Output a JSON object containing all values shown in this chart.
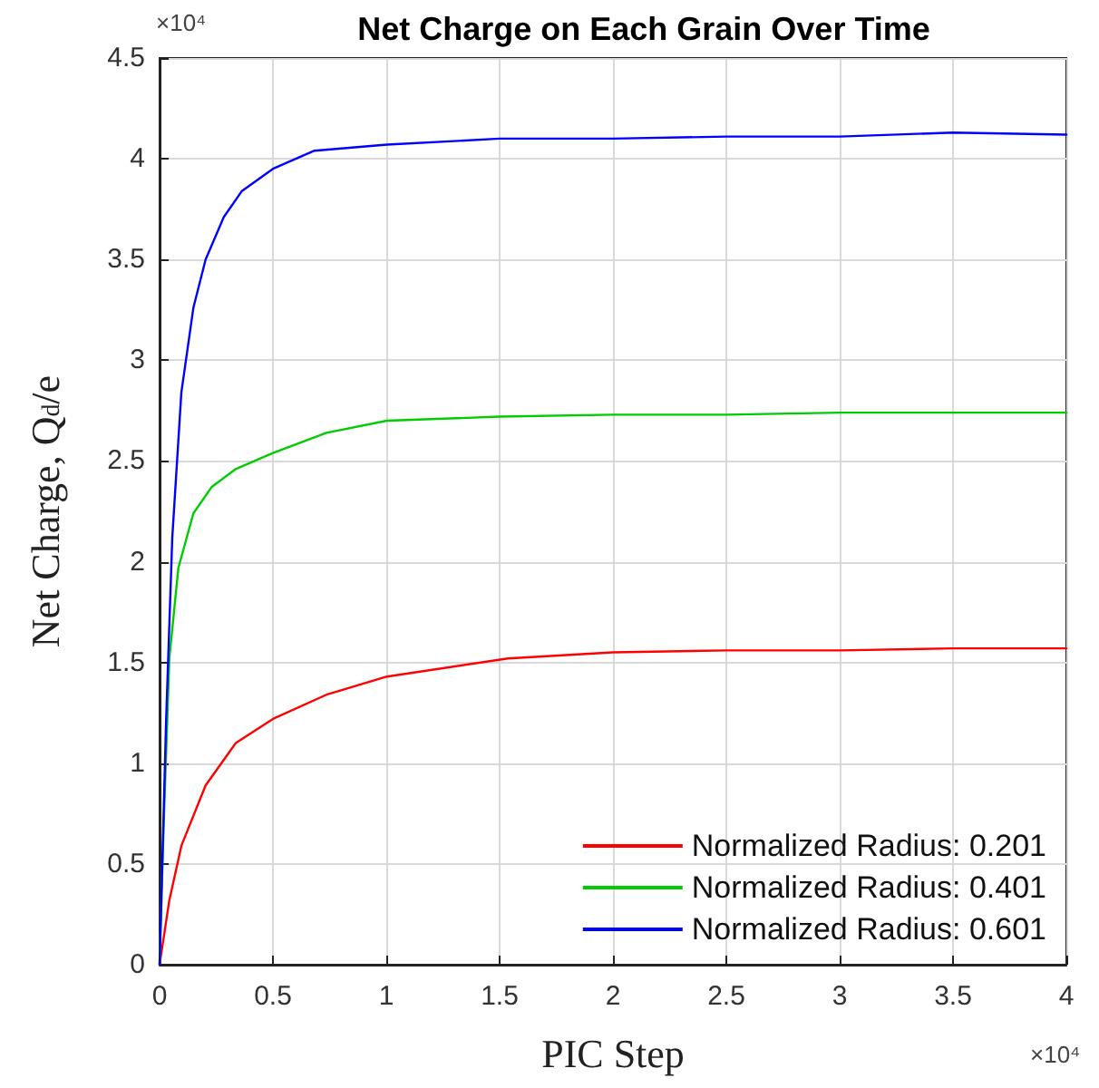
{
  "chart_data": {
    "type": "line",
    "title": "Net Charge on Each Grain Over Time",
    "xlabel": "PIC Step",
    "ylabel": "Net Charge, Q$_{d}$/e",
    "annotations": [
      "×10⁴",
      "×10⁴"
    ],
    "series": [
      {
        "name": "Normalized Radius: 0.201",
        "color": "#ff0000",
        "x": [
          0,
          0.043,
          0.096,
          0.203,
          0.336,
          0.5,
          0.736,
          1.003,
          1.536,
          2,
          2.5,
          3,
          3.5,
          4
        ],
        "values": [
          0,
          0.32,
          0.59,
          0.89,
          1.1,
          1.22,
          1.34,
          1.43,
          1.52,
          1.55,
          1.56,
          1.56,
          1.57,
          1.57
        ]
      },
      {
        "name": "Normalized Radius: 0.401",
        "color": "#00cc00",
        "x": [
          0,
          0.016,
          0.043,
          0.083,
          0.149,
          0.229,
          0.336,
          0.5,
          0.736,
          1.003,
          1.5,
          2,
          2.5,
          3,
          3.5,
          4
        ],
        "values": [
          0,
          0.62,
          1.52,
          1.97,
          2.24,
          2.37,
          2.46,
          2.54,
          2.64,
          2.7,
          2.72,
          2.73,
          2.73,
          2.74,
          2.74,
          2.74
        ]
      },
      {
        "name": "Normalized Radius: 0.601",
        "color": "#0000ff",
        "x": [
          0,
          0.029,
          0.056,
          0.096,
          0.149,
          0.203,
          0.283,
          0.363,
          0.5,
          0.683,
          1.003,
          1.5,
          2,
          2.5,
          3,
          3.5,
          4
        ],
        "values": [
          0,
          1.22,
          2.12,
          2.84,
          3.26,
          3.5,
          3.71,
          3.84,
          3.95,
          4.04,
          4.07,
          4.1,
          4.1,
          4.11,
          4.11,
          4.13,
          4.12
        ]
      }
    ],
    "xlim": [
      0,
      4
    ],
    "xticks": [
      0,
      0.5,
      1,
      1.5,
      2,
      2.5,
      3,
      3.5,
      4
    ],
    "ylim": [
      0,
      4.5
    ],
    "yticks": [
      0,
      0.5,
      1,
      1.5,
      2,
      2.5,
      3,
      3.5,
      4,
      4.5
    ],
    "grid": true,
    "legend": "bottom right",
    "line_style": "solid"
  }
}
